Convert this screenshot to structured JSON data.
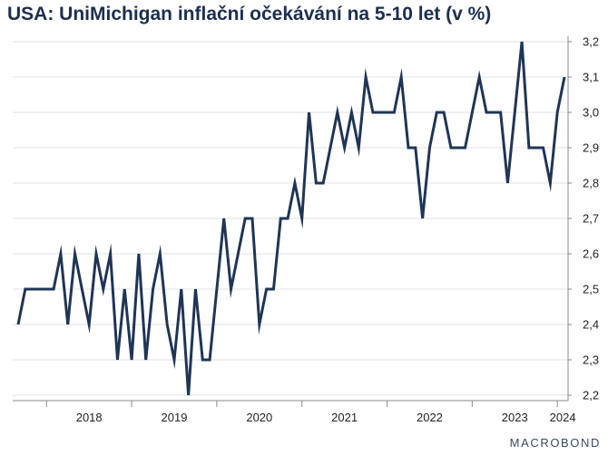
{
  "title": "USA: UniMichigan inflační očekávání na 5-10 let (v %)",
  "brand": "MACROBOND",
  "colors": {
    "line": "#1f3556",
    "grid": "#e2e2e2",
    "axis": "#888888",
    "text": "#222222"
  },
  "chart_data": {
    "type": "line",
    "title": "USA: UniMichigan inflační očekávání na 5-10 let (v %)",
    "xlabel": "",
    "ylabel": "",
    "ylim": [
      2.2,
      3.2
    ],
    "yticks": [
      "2,2",
      "2,3",
      "2,4",
      "2,5",
      "2,6",
      "2,7",
      "2,8",
      "2,9",
      "3,0",
      "3,1",
      "3,2"
    ],
    "y_axis_side": "right",
    "grid": "horizontal",
    "legend": "none",
    "xtick_labels": [
      "2018",
      "2019",
      "2020",
      "2021",
      "2022",
      "2023",
      "2024"
    ],
    "start": "2017-09",
    "frequency": "monthly",
    "series": [
      {
        "values": [
          2.4,
          2.5,
          2.5,
          2.5,
          2.5,
          2.5,
          2.6,
          2.4,
          2.6,
          2.5,
          2.4,
          2.6,
          2.5,
          2.6,
          2.3,
          2.5,
          2.3,
          2.6,
          2.3,
          2.5,
          2.6,
          2.4,
          2.3,
          2.5,
          2.2,
          2.5,
          2.3,
          2.3,
          2.5,
          2.7,
          2.5,
          2.6,
          2.7,
          2.7,
          2.4,
          2.5,
          2.5,
          2.7,
          2.7,
          2.8,
          2.7,
          3.0,
          2.8,
          2.8,
          2.9,
          3.0,
          2.9,
          3.0,
          2.9,
          3.1,
          3.0,
          3.0,
          3.0,
          3.0,
          3.1,
          2.9,
          2.9,
          2.7,
          2.9,
          3.0,
          3.0,
          2.9,
          2.9,
          2.9,
          3.0,
          3.1,
          3.0,
          3.0,
          3.0,
          2.8,
          3.0,
          3.2,
          2.9,
          2.9,
          2.9,
          2.8,
          3.0,
          3.1
        ]
      }
    ]
  }
}
